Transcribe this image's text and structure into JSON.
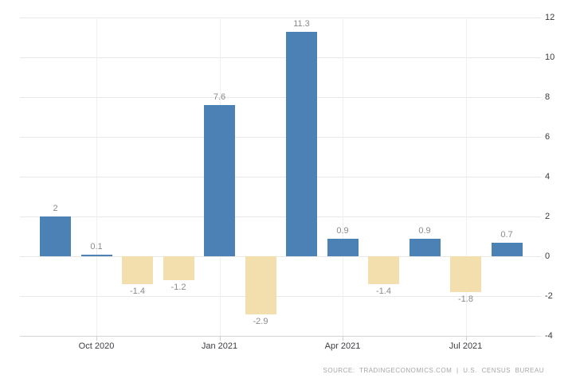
{
  "chart": {
    "source_text": "SOURCE:  TRADINGECONOMICS.COM  |  U.S.  CENSUS  BUREAU"
  },
  "chart_data": {
    "type": "bar",
    "title": "",
    "values": [
      2,
      0.1,
      -1.4,
      -1.2,
      7.6,
      -2.9,
      11.3,
      0.9,
      -1.4,
      0.9,
      -1.8,
      0.7
    ],
    "data_labels": [
      "2",
      "0.1",
      "-1.4",
      "-1.2",
      "7.6",
      "-2.9",
      "11.3",
      "0.9",
      "-1.4",
      "0.9",
      "-1.8",
      "0.7"
    ],
    "x_ticks": [
      {
        "label": "Oct 2020",
        "bar_index": 1
      },
      {
        "label": "Jan 2021",
        "bar_index": 4
      },
      {
        "label": "Apr 2021",
        "bar_index": 7
      },
      {
        "label": "Jul 2021",
        "bar_index": 10
      }
    ],
    "y_ticks": [
      12,
      10,
      8,
      6,
      4,
      2,
      0,
      -2,
      -4
    ],
    "ylim": [
      -4,
      12
    ],
    "grid": true,
    "legend": false,
    "colors": {
      "positive": "#4c81b6",
      "negative": "#f3deae"
    }
  }
}
